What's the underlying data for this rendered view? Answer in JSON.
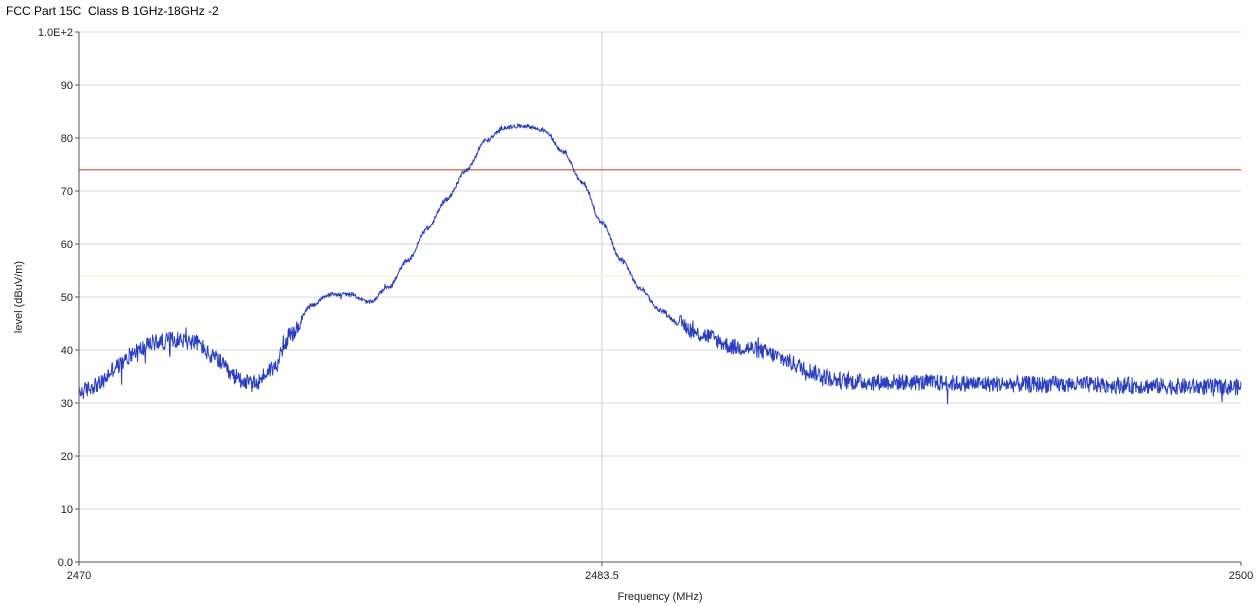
{
  "window": {
    "title": "FCC Part 15C  Class B 1GHz-18GHz -2"
  },
  "chart_data": {
    "type": "line",
    "title": "FCC Part 15C  Class B 1GHz-18GHz -2",
    "xlabel": "Frequency (MHz)",
    "ylabel": "level (dBuV/m)",
    "xlim": [
      2470,
      2500
    ],
    "ylim": [
      0,
      100
    ],
    "x_ticks": [
      2470,
      2483.5,
      2500
    ],
    "x_tick_labels": [
      "2470",
      "2483.5",
      "2500"
    ],
    "y_ticks": [
      0,
      10,
      20,
      30,
      40,
      50,
      60,
      70,
      80,
      90,
      100
    ],
    "y_tick_labels": [
      "0.0",
      "10",
      "20",
      "30",
      "40",
      "50",
      "60",
      "70",
      "80",
      "90",
      "1.0E+2"
    ],
    "grid": true,
    "marker_line_x": 2483.5,
    "limit_lines": [
      {
        "value": 74,
        "color": "#d14b3c"
      },
      {
        "value": 54,
        "color": "#f2f2c0"
      }
    ],
    "series": [
      {
        "color": "#2a3fbf",
        "noise_amplitude": 1.6,
        "x": [
          2470,
          2470.5,
          2471,
          2471.5,
          2472,
          2472.5,
          2473,
          2473.5,
          2474,
          2474.5,
          2475,
          2475.5,
          2476,
          2476.5,
          2477,
          2477.5,
          2478,
          2478.5,
          2479,
          2479.5,
          2480,
          2480.5,
          2481,
          2481.5,
          2482,
          2482.5,
          2483,
          2483.5,
          2484,
          2484.5,
          2485,
          2485.5,
          2486,
          2487,
          2490,
          2495,
          2500
        ],
        "values": [
          32,
          33.5,
          37,
          40,
          41.5,
          42,
          41.5,
          38.5,
          35,
          33.5,
          36.5,
          43,
          48.5,
          50.5,
          50.5,
          49,
          52,
          57,
          63,
          68.5,
          74,
          79.5,
          82,
          82.3,
          81.5,
          77.5,
          71.5,
          64,
          57,
          51.5,
          47.5,
          45,
          43,
          40.5,
          34,
          33.5,
          33
        ]
      }
    ]
  }
}
